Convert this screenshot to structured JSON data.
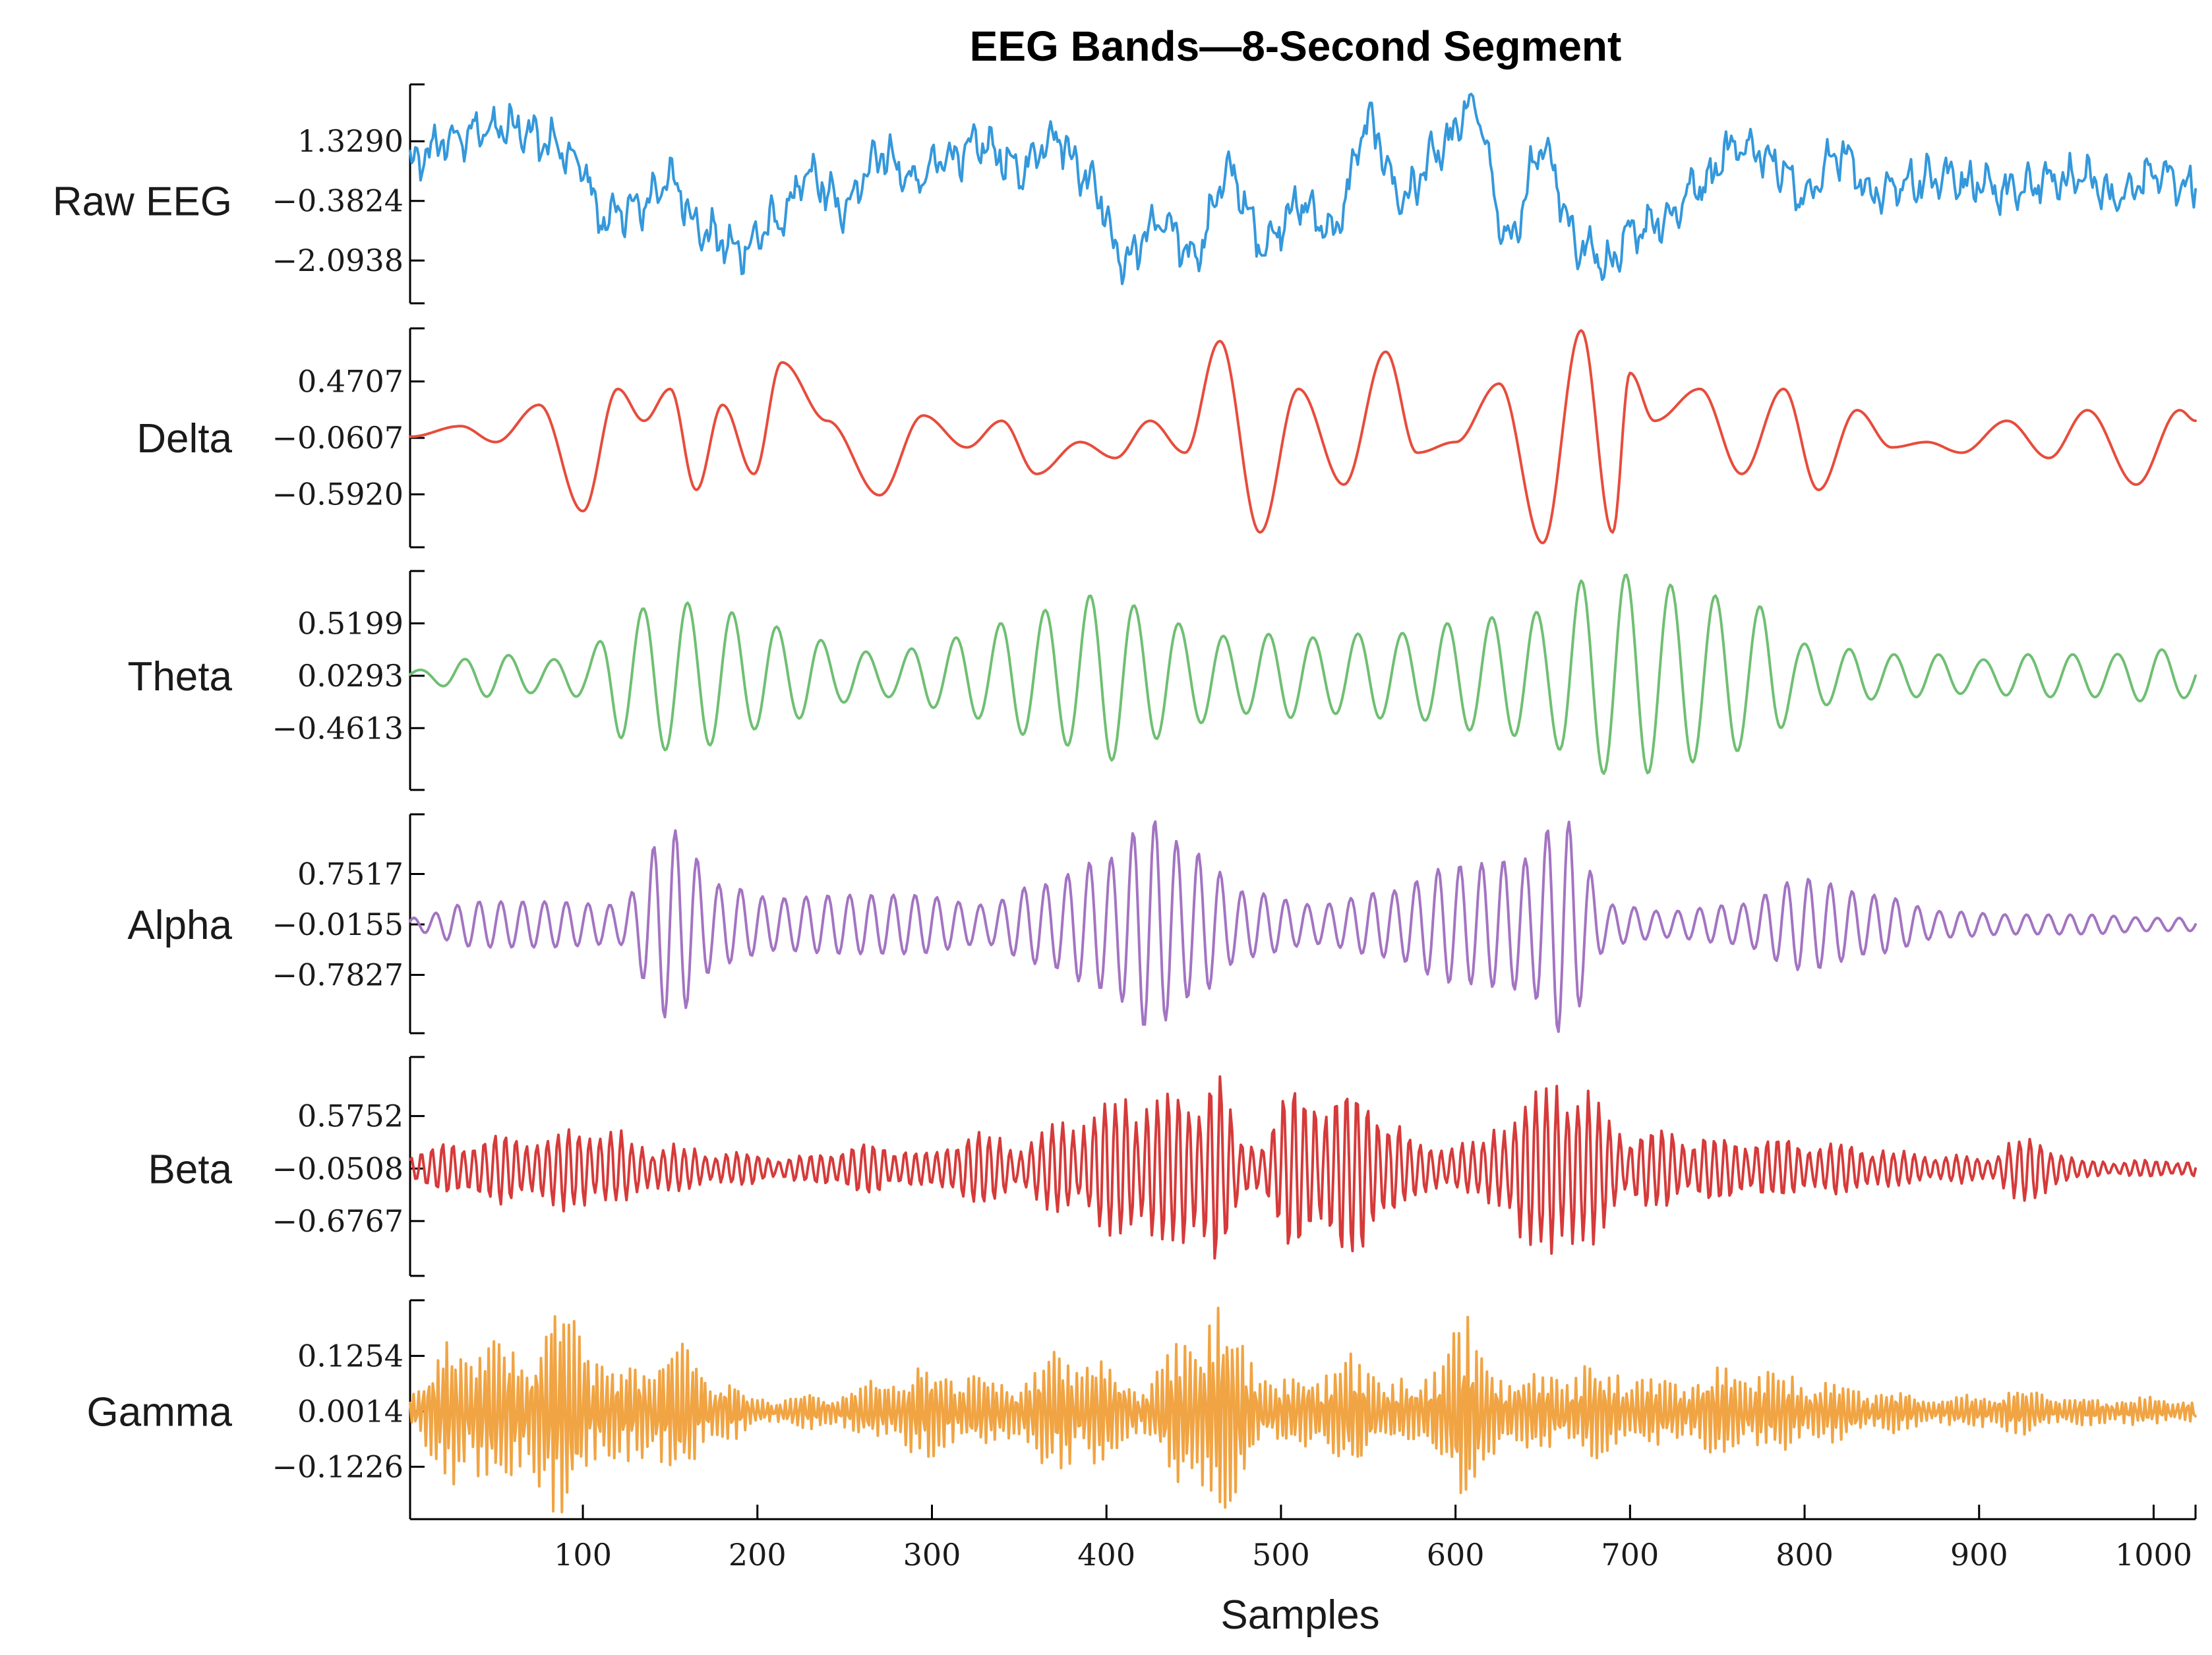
{
  "chart_data": {
    "type": "line",
    "title": "EEG Bands—8-Second Segment",
    "xlabel": "Samples",
    "xlim": [
      1,
      1024
    ],
    "xticks": [
      100,
      200,
      300,
      400,
      500,
      600,
      700,
      800,
      900,
      1000
    ],
    "grid": false,
    "legend": "none",
    "series": [
      {
        "name": "Raw EEG",
        "color": "#3498db",
        "yticks": [
          1.329,
          -0.3824,
          -2.0938
        ],
        "ytick_labels": [
          "1.3290",
          "−0.3824",
          "−2.0938"
        ],
        "ylim": [
          -3.32,
          2.96
        ],
        "x": [
          1,
          20,
          40,
          60,
          80,
          100,
          110,
          130,
          150,
          170,
          190,
          210,
          230,
          250,
          270,
          290,
          310,
          330,
          350,
          370,
          390,
          410,
          430,
          450,
          470,
          490,
          510,
          530,
          550,
          570,
          590,
          610,
          630,
          650,
          670,
          690,
          700,
          720,
          740,
          760,
          780,
          800,
          820,
          840,
          860,
          880,
          900,
          920,
          940,
          960,
          980,
          1000,
          1024
        ],
        "values": [
          0.6,
          1.3,
          1.6,
          1.8,
          1.3,
          0.6,
          -0.9,
          -0.6,
          0.2,
          -1.3,
          -1.8,
          -1.0,
          0.3,
          -0.6,
          1.0,
          0.2,
          0.9,
          1.2,
          0.5,
          1.5,
          0.3,
          -2.1,
          -1.0,
          -1.9,
          0.4,
          -1.6,
          -0.5,
          -1.2,
          1.8,
          -0.3,
          1.0,
          2.3,
          -1.5,
          1.1,
          -1.6,
          -2.3,
          -1.2,
          -0.9,
          0.1,
          1.2,
          0.9,
          -0.2,
          1.0,
          -0.2,
          0.1,
          0.4,
          0.0,
          -0.1,
          0.2,
          0.3,
          -0.3,
          0.4,
          0.0
        ]
      },
      {
        "name": "Delta",
        "color": "#e74c3c",
        "yticks": [
          0.4707,
          -0.0607,
          -0.592
        ],
        "ytick_labels": [
          "0.4707",
          "−0.0607",
          "−0.5920"
        ],
        "ylim": [
          -1.09,
          0.97
        ],
        "x": [
          1,
          30,
          50,
          75,
          100,
          120,
          135,
          150,
          165,
          180,
          198,
          214,
          240,
          270,
          295,
          320,
          340,
          360,
          385,
          405,
          425,
          445,
          465,
          488,
          510,
          536,
          560,
          578,
          600,
          625,
          650,
          672,
          690,
          700,
          714,
          740,
          764,
          788,
          808,
          830,
          850,
          870,
          890,
          916,
          940,
          962,
          990,
          1015,
          1024
        ],
        "values": [
          -0.05,
          0.05,
          -0.1,
          0.25,
          -0.75,
          0.4,
          0.1,
          0.4,
          -0.55,
          0.25,
          -0.4,
          0.65,
          0.1,
          -0.6,
          0.15,
          -0.15,
          0.1,
          -0.4,
          -0.1,
          -0.25,
          0.1,
          -0.2,
          0.85,
          -0.95,
          0.4,
          -0.5,
          0.75,
          -0.2,
          -0.1,
          0.45,
          -1.05,
          0.95,
          -0.95,
          0.55,
          0.1,
          0.4,
          -0.4,
          0.4,
          -0.55,
          0.2,
          -0.15,
          -0.1,
          -0.2,
          0.1,
          -0.25,
          0.2,
          -0.5,
          0.2,
          0.1
        ]
      },
      {
        "name": "Theta",
        "color": "#6fbf73",
        "yticks": [
          0.5199,
          0.0293,
          -0.4613
        ],
        "ytick_labels": [
          "0.5199",
          "0.0293",
          "−0.4613"
        ],
        "ylim": [
          -1.04,
          1.01
        ],
        "x": [
          1,
          50,
          80,
          100,
          125,
          150,
          175,
          200,
          225,
          250,
          275,
          300,
          325,
          350,
          375,
          400,
          425,
          450,
          475,
          500,
          525,
          550,
          575,
          600,
          625,
          650,
          675,
          700,
          725,
          750,
          775,
          800,
          825,
          850,
          875,
          900,
          925,
          950,
          975,
          1000,
          1024
        ],
        "envelope": [
          0.05,
          0.2,
          0.15,
          0.2,
          0.6,
          0.7,
          0.65,
          0.5,
          0.4,
          0.25,
          0.2,
          0.3,
          0.4,
          0.55,
          0.65,
          0.8,
          0.6,
          0.45,
          0.35,
          0.4,
          0.35,
          0.4,
          0.4,
          0.5,
          0.55,
          0.6,
          0.9,
          0.95,
          0.85,
          0.75,
          0.65,
          0.3,
          0.25,
          0.2,
          0.2,
          0.15,
          0.2,
          0.2,
          0.2,
          0.25,
          0.2
        ],
        "cycles_per_1024": 40
      },
      {
        "name": "Alpha",
        "color": "#a374c2",
        "yticks": [
          0.7517,
          -0.0155,
          -0.7827
        ],
        "ytick_labels": [
          "0.7517",
          "−0.0155",
          "−0.7827"
        ],
        "ylim": [
          -1.67,
          1.66
        ],
        "x": [
          1,
          40,
          80,
          120,
          150,
          180,
          210,
          250,
          290,
          330,
          360,
          400,
          425,
          450,
          480,
          520,
          560,
          600,
          640,
          660,
          690,
          720,
          760,
          800,
          840,
          880,
          920,
          960,
          1000,
          1024
        ],
        "envelope": [
          0.1,
          0.35,
          0.35,
          0.3,
          1.45,
          0.6,
          0.4,
          0.45,
          0.45,
          0.3,
          0.6,
          1.0,
          1.6,
          1.1,
          0.5,
          0.3,
          0.5,
          0.9,
          1.0,
          1.65,
          0.3,
          0.2,
          0.3,
          0.7,
          0.45,
          0.2,
          0.15,
          0.15,
          0.1,
          0.1
        ]
      },
      {
        "name": "Beta",
        "color": "#d63a3a",
        "yticks": [
          0.5752,
          -0.0508,
          -0.6767
        ],
        "ytick_labels": [
          "0.5752",
          "−0.0508",
          "−0.6767"
        ],
        "ylim": [
          -1.33,
          1.28
        ],
        "x": [
          1,
          40,
          80,
          100,
          140,
          180,
          220,
          260,
          300,
          320,
          350,
          380,
          410,
          440,
          460,
          480,
          510,
          530,
          550,
          580,
          610,
          640,
          660,
          700,
          740,
          780,
          820,
          860,
          900,
          930,
          960,
          1000,
          1024
        ],
        "envelope": [
          0.2,
          0.4,
          0.4,
          0.55,
          0.3,
          0.2,
          0.15,
          0.3,
          0.2,
          0.5,
          0.3,
          0.6,
          0.9,
          0.9,
          1.3,
          0.3,
          1.0,
          1.0,
          0.95,
          0.3,
          0.3,
          0.9,
          1.15,
          0.5,
          0.4,
          0.35,
          0.3,
          0.2,
          0.15,
          0.4,
          0.1,
          0.1,
          0.1
        ]
      },
      {
        "name": "Gamma",
        "color": "#f0a443",
        "yticks": [
          0.1254,
          0.0014,
          -0.1226
        ],
        "ytick_labels": [
          "0.1254",
          "0.0014",
          "−0.1226"
        ],
        "ylim": [
          -0.24,
          0.25
        ],
        "x": [
          1,
          30,
          60,
          90,
          120,
          150,
          180,
          200,
          240,
          300,
          340,
          380,
          420,
          460,
          500,
          540,
          580,
          600,
          620,
          640,
          680,
          720,
          760,
          800,
          840,
          880,
          920,
          960,
          1000,
          1024
        ],
        "envelope": [
          0.05,
          0.18,
          0.15,
          0.24,
          0.1,
          0.15,
          0.08,
          0.03,
          0.04,
          0.1,
          0.07,
          0.14,
          0.07,
          0.24,
          0.07,
          0.12,
          0.06,
          0.22,
          0.12,
          0.08,
          0.1,
          0.07,
          0.1,
          0.08,
          0.05,
          0.03,
          0.05,
          0.03,
          0.03,
          0.03
        ]
      }
    ]
  }
}
